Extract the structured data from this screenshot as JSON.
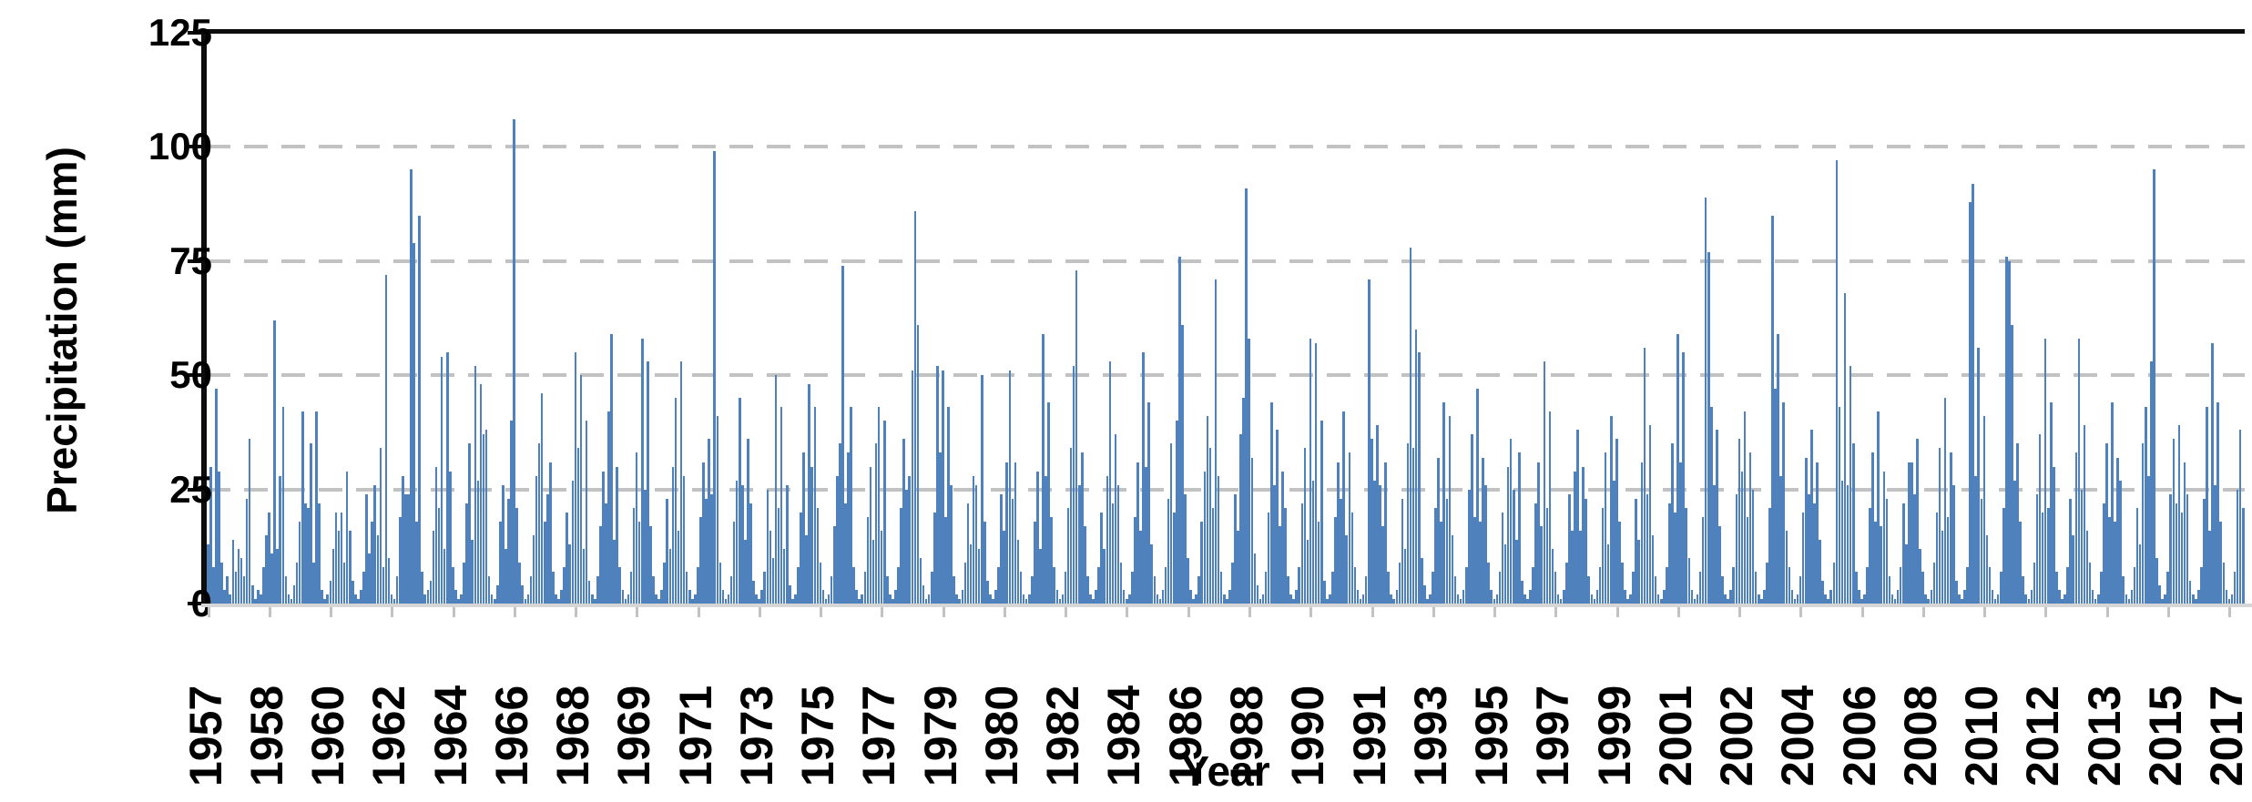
{
  "chart": {
    "y_axis": {
      "title": "Precipitation (mm)",
      "tick_labels": [
        "0",
        "25",
        "50",
        "75",
        "100",
        "125"
      ],
      "tick_values": [
        0,
        25,
        50,
        75,
        100,
        125
      ],
      "gridlines": [
        25,
        50,
        75,
        100
      ],
      "min": 0,
      "max": 125
    },
    "x_axis": {
      "title": "Year",
      "tick_labels": [
        "1957",
        "1958",
        "1960",
        "1962",
        "1964",
        "1966",
        "1968",
        "1969",
        "1971",
        "1973",
        "1975",
        "1977",
        "1979",
        "1980",
        "1982",
        "1984",
        "1986",
        "1988",
        "1990",
        "1991",
        "1993",
        "1995",
        "1997",
        "1999",
        "2001",
        "2002",
        "2004",
        "2006",
        "2008",
        "2010",
        "2012",
        "2013",
        "2015",
        "2017"
      ],
      "label_month_indices": [
        0,
        22,
        44,
        66,
        88,
        110,
        132,
        154,
        176,
        198,
        220,
        242,
        264,
        286,
        308,
        330,
        352,
        374,
        396,
        418,
        440,
        462,
        484,
        506,
        528,
        550,
        572,
        594,
        616,
        638,
        660,
        682,
        704,
        726
      ]
    },
    "colors": {
      "bar": "#4F81BD",
      "gridline": "#C2C2C2",
      "value_axis": "#0D0D0D",
      "category_axis_line": "#D6D6D6"
    }
  },
  "chart_data": {
    "type": "bar",
    "title": "",
    "xlabel": "Year",
    "ylabel": "Precipitation (mm)",
    "ylim": [
      0,
      125
    ],
    "x_unit": "month",
    "start": "1957-01",
    "end": "2017-12",
    "notable_peaks": [
      {
        "date": "1957-04",
        "value": 47
      },
      {
        "date": "1959-01",
        "value": 62
      },
      {
        "date": "1962-05",
        "value": 72
      },
      {
        "date": "1963-02",
        "value": 95
      },
      {
        "date": "1963-05",
        "value": 85
      },
      {
        "date": "1966-03",
        "value": 106
      },
      {
        "date": "1972-03",
        "value": 99
      },
      {
        "date": "1978-03",
        "value": 86
      },
      {
        "date": "1983-01",
        "value": 73
      },
      {
        "date": "1986-02",
        "value": 76
      },
      {
        "date": "1988-02",
        "value": 91
      },
      {
        "date": "1993-01",
        "value": 78
      },
      {
        "date": "2001-11",
        "value": 89
      },
      {
        "date": "2003-11",
        "value": 85
      },
      {
        "date": "2005-10",
        "value": 97
      },
      {
        "date": "2009-11",
        "value": 92
      },
      {
        "date": "2015-04",
        "value": 95
      }
    ],
    "monthly": [
      {
        "year": 1957,
        "values": [
          13,
          30,
          8,
          47,
          29,
          9,
          3,
          6,
          2,
          14,
          7,
          12
        ]
      },
      {
        "year": 1958,
        "values": [
          10,
          6,
          23,
          36,
          4,
          1,
          3,
          2,
          8,
          15,
          20,
          11
        ]
      },
      {
        "year": 1959,
        "values": [
          62,
          12,
          28,
          43,
          6,
          2,
          1,
          4,
          9,
          18,
          42,
          22
        ]
      },
      {
        "year": 1960,
        "values": [
          21,
          35,
          9,
          42,
          22,
          3,
          1,
          2,
          5,
          12,
          20,
          16
        ]
      },
      {
        "year": 1961,
        "values": [
          20,
          9,
          29,
          16,
          5,
          2,
          1,
          3,
          7,
          24,
          11,
          18
        ]
      },
      {
        "year": 1962,
        "values": [
          26,
          15,
          34,
          8,
          72,
          10,
          2,
          1,
          6,
          19,
          28,
          24
        ]
      },
      {
        "year": 1963,
        "values": [
          24,
          95,
          79,
          18,
          85,
          7,
          2,
          3,
          5,
          16,
          30,
          21
        ]
      },
      {
        "year": 1964,
        "values": [
          54,
          12,
          55,
          29,
          8,
          3,
          1,
          2,
          9,
          22,
          35,
          14
        ]
      },
      {
        "year": 1965,
        "values": [
          52,
          27,
          48,
          37,
          38,
          6,
          2,
          1,
          4,
          18,
          26,
          12
        ]
      },
      {
        "year": 1966,
        "values": [
          23,
          40,
          106,
          21,
          9,
          4,
          1,
          2,
          6,
          15,
          28,
          35
        ]
      },
      {
        "year": 1967,
        "values": [
          46,
          18,
          24,
          31,
          7,
          2,
          1,
          3,
          8,
          20,
          13,
          27
        ]
      },
      {
        "year": 1968,
        "values": [
          55,
          34,
          50,
          12,
          40,
          5,
          2,
          1,
          6,
          17,
          29,
          22
        ]
      },
      {
        "year": 1969,
        "values": [
          42,
          59,
          14,
          30,
          8,
          3,
          1,
          2,
          7,
          21,
          33,
          18
        ]
      },
      {
        "year": 1970,
        "values": [
          58,
          25,
          53,
          17,
          6,
          2,
          1,
          3,
          9,
          23,
          12,
          30
        ]
      },
      {
        "year": 1971,
        "values": [
          45,
          16,
          53,
          28,
          7,
          3,
          1,
          2,
          8,
          19,
          31,
          23
        ]
      },
      {
        "year": 1972,
        "values": [
          36,
          24,
          99,
          41,
          9,
          3,
          1,
          2,
          6,
          18,
          27,
          45
        ]
      },
      {
        "year": 1973,
        "values": [
          26,
          14,
          36,
          22,
          5,
          2,
          1,
          3,
          7,
          25,
          16,
          10
        ]
      },
      {
        "year": 1974,
        "values": [
          50,
          21,
          43,
          12,
          26,
          4,
          1,
          2,
          8,
          20,
          33,
          15
        ]
      },
      {
        "year": 1975,
        "values": [
          48,
          30,
          43,
          21,
          9,
          3,
          1,
          2,
          6,
          17,
          28,
          35
        ]
      },
      {
        "year": 1976,
        "values": [
          74,
          22,
          33,
          43,
          8,
          3,
          1,
          2,
          7,
          19,
          30,
          14
        ]
      },
      {
        "year": 1977,
        "values": [
          35,
          43,
          16,
          40,
          6,
          2,
          1,
          3,
          8,
          21,
          36,
          25
        ]
      },
      {
        "year": 1978,
        "values": [
          28,
          51,
          86,
          61,
          10,
          4,
          1,
          2,
          7,
          20,
          52,
          33
        ]
      },
      {
        "year": 1979,
        "values": [
          51,
          19,
          43,
          26,
          6,
          2,
          1,
          3,
          9,
          22,
          13,
          28
        ]
      },
      {
        "year": 1980,
        "values": [
          26,
          12,
          50,
          18,
          5,
          2,
          1,
          3,
          8,
          24,
          16,
          31
        ]
      },
      {
        "year": 1981,
        "values": [
          51,
          23,
          31,
          14,
          7,
          2,
          1,
          2,
          6,
          18,
          29,
          12
        ]
      },
      {
        "year": 1982,
        "values": [
          59,
          28,
          44,
          19,
          8,
          3,
          1,
          2,
          7,
          21,
          34,
          52
        ]
      },
      {
        "year": 1983,
        "values": [
          73,
          26,
          33,
          17,
          6,
          2,
          1,
          3,
          8,
          20,
          12,
          28
        ]
      },
      {
        "year": 1984,
        "values": [
          53,
          22,
          37,
          26,
          9,
          3,
          1,
          2,
          7,
          19,
          31,
          16
        ]
      },
      {
        "year": 1985,
        "values": [
          55,
          30,
          44,
          13,
          6,
          2,
          1,
          3,
          8,
          23,
          35,
          20
        ]
      },
      {
        "year": 1986,
        "values": [
          40,
          76,
          61,
          24,
          10,
          3,
          1,
          2,
          6,
          18,
          29,
          41
        ]
      },
      {
        "year": 1987,
        "values": [
          34,
          21,
          71,
          28,
          7,
          2,
          1,
          3,
          9,
          24,
          16,
          37
        ]
      },
      {
        "year": 1988,
        "values": [
          45,
          91,
          58,
          32,
          11,
          4,
          1,
          2,
          7,
          20,
          44,
          26
        ]
      },
      {
        "year": 1989,
        "values": [
          38,
          17,
          29,
          21,
          6,
          2,
          1,
          3,
          8,
          22,
          34,
          14
        ]
      },
      {
        "year": 1990,
        "values": [
          58,
          27,
          57,
          18,
          40,
          5,
          1,
          2,
          7,
          19,
          31,
          23
        ]
      },
      {
        "year": 1991,
        "values": [
          42,
          15,
          33,
          20,
          8,
          3,
          1,
          2,
          6,
          71,
          36,
          27
        ]
      },
      {
        "year": 1992,
        "values": [
          39,
          26,
          17,
          31,
          7,
          2,
          1,
          3,
          9,
          23,
          12,
          35
        ]
      },
      {
        "year": 1993,
        "values": [
          78,
          34,
          60,
          55,
          10,
          4,
          1,
          2,
          7,
          21,
          32,
          18
        ]
      },
      {
        "year": 1994,
        "values": [
          44,
          23,
          41,
          15,
          6,
          2,
          1,
          3,
          8,
          25,
          37,
          19
        ]
      },
      {
        "year": 1995,
        "values": [
          47,
          18,
          32,
          26,
          9,
          3,
          1,
          2,
          7,
          20,
          13,
          30
        ]
      },
      {
        "year": 1996,
        "values": [
          36,
          25,
          14,
          33,
          5,
          2,
          1,
          3,
          8,
          22,
          31,
          17
        ]
      },
      {
        "year": 1997,
        "values": [
          53,
          21,
          42,
          12,
          7,
          2,
          1,
          3,
          9,
          24,
          16,
          29
        ]
      },
      {
        "year": 1998,
        "values": [
          38,
          16,
          30,
          23,
          6,
          2,
          1,
          3,
          8,
          21,
          33,
          13
        ]
      },
      {
        "year": 1999,
        "values": [
          41,
          27,
          36,
          18,
          9,
          3,
          1,
          2,
          7,
          23,
          14,
          31
        ]
      },
      {
        "year": 2000,
        "values": [
          56,
          24,
          39,
          15,
          6,
          2,
          1,
          3,
          8,
          22,
          35,
          20
        ]
      },
      {
        "year": 2001,
        "values": [
          59,
          31,
          55,
          21,
          10,
          3,
          1,
          2,
          7,
          19,
          89,
          77
        ]
      },
      {
        "year": 2002,
        "values": [
          43,
          26,
          38,
          17,
          6,
          2,
          1,
          3,
          8,
          24,
          36,
          29
        ]
      },
      {
        "year": 2003,
        "values": [
          42,
          19,
          33,
          25,
          7,
          2,
          1,
          3,
          9,
          21,
          85,
          47
        ]
      },
      {
        "year": 2004,
        "values": [
          59,
          28,
          44,
          16,
          8,
          3,
          1,
          2,
          6,
          20,
          32,
          24
        ]
      },
      {
        "year": 2005,
        "values": [
          38,
          22,
          31,
          14,
          5,
          2,
          1,
          3,
          9,
          97,
          43,
          27
        ]
      },
      {
        "year": 2006,
        "values": [
          68,
          26,
          52,
          35,
          7,
          3,
          1,
          2,
          8,
          21,
          33,
          18
        ]
      },
      {
        "year": 2007,
        "values": [
          42,
          17,
          29,
          23,
          6,
          2,
          1,
          3,
          8,
          22,
          13,
          31
        ]
      },
      {
        "year": 2008,
        "values": [
          31,
          24,
          36,
          12,
          7,
          2,
          1,
          3,
          9,
          20,
          34,
          16
        ]
      },
      {
        "year": 2009,
        "values": [
          45,
          19,
          33,
          26,
          5,
          2,
          1,
          3,
          8,
          88,
          92,
          28
        ]
      },
      {
        "year": 2010,
        "values": [
          56,
          23,
          41,
          15,
          8,
          3,
          1,
          2,
          7,
          21,
          76,
          75
        ]
      },
      {
        "year": 2011,
        "values": [
          61,
          27,
          35,
          18,
          6,
          2,
          1,
          3,
          9,
          24,
          37,
          20
        ]
      },
      {
        "year": 2012,
        "values": [
          58,
          21,
          44,
          30,
          7,
          3,
          1,
          2,
          8,
          23,
          15,
          33
        ]
      },
      {
        "year": 2013,
        "values": [
          58,
          25,
          39,
          16,
          9,
          3,
          1,
          2,
          7,
          22,
          35,
          19
        ]
      },
      {
        "year": 2014,
        "values": [
          44,
          18,
          32,
          27,
          6,
          2,
          1,
          3,
          8,
          21,
          13,
          35
        ]
      },
      {
        "year": 2015,
        "values": [
          43,
          28,
          53,
          95,
          10,
          4,
          1,
          2,
          7,
          24,
          36,
          22
        ]
      },
      {
        "year": 2016,
        "values": [
          39,
          20,
          31,
          24,
          5,
          2,
          1,
          3,
          8,
          23,
          43,
          16
        ]
      },
      {
        "year": 2017,
        "values": [
          57,
          26,
          44,
          18,
          9,
          3,
          1,
          2,
          7,
          25,
          38,
          21
        ]
      }
    ]
  }
}
